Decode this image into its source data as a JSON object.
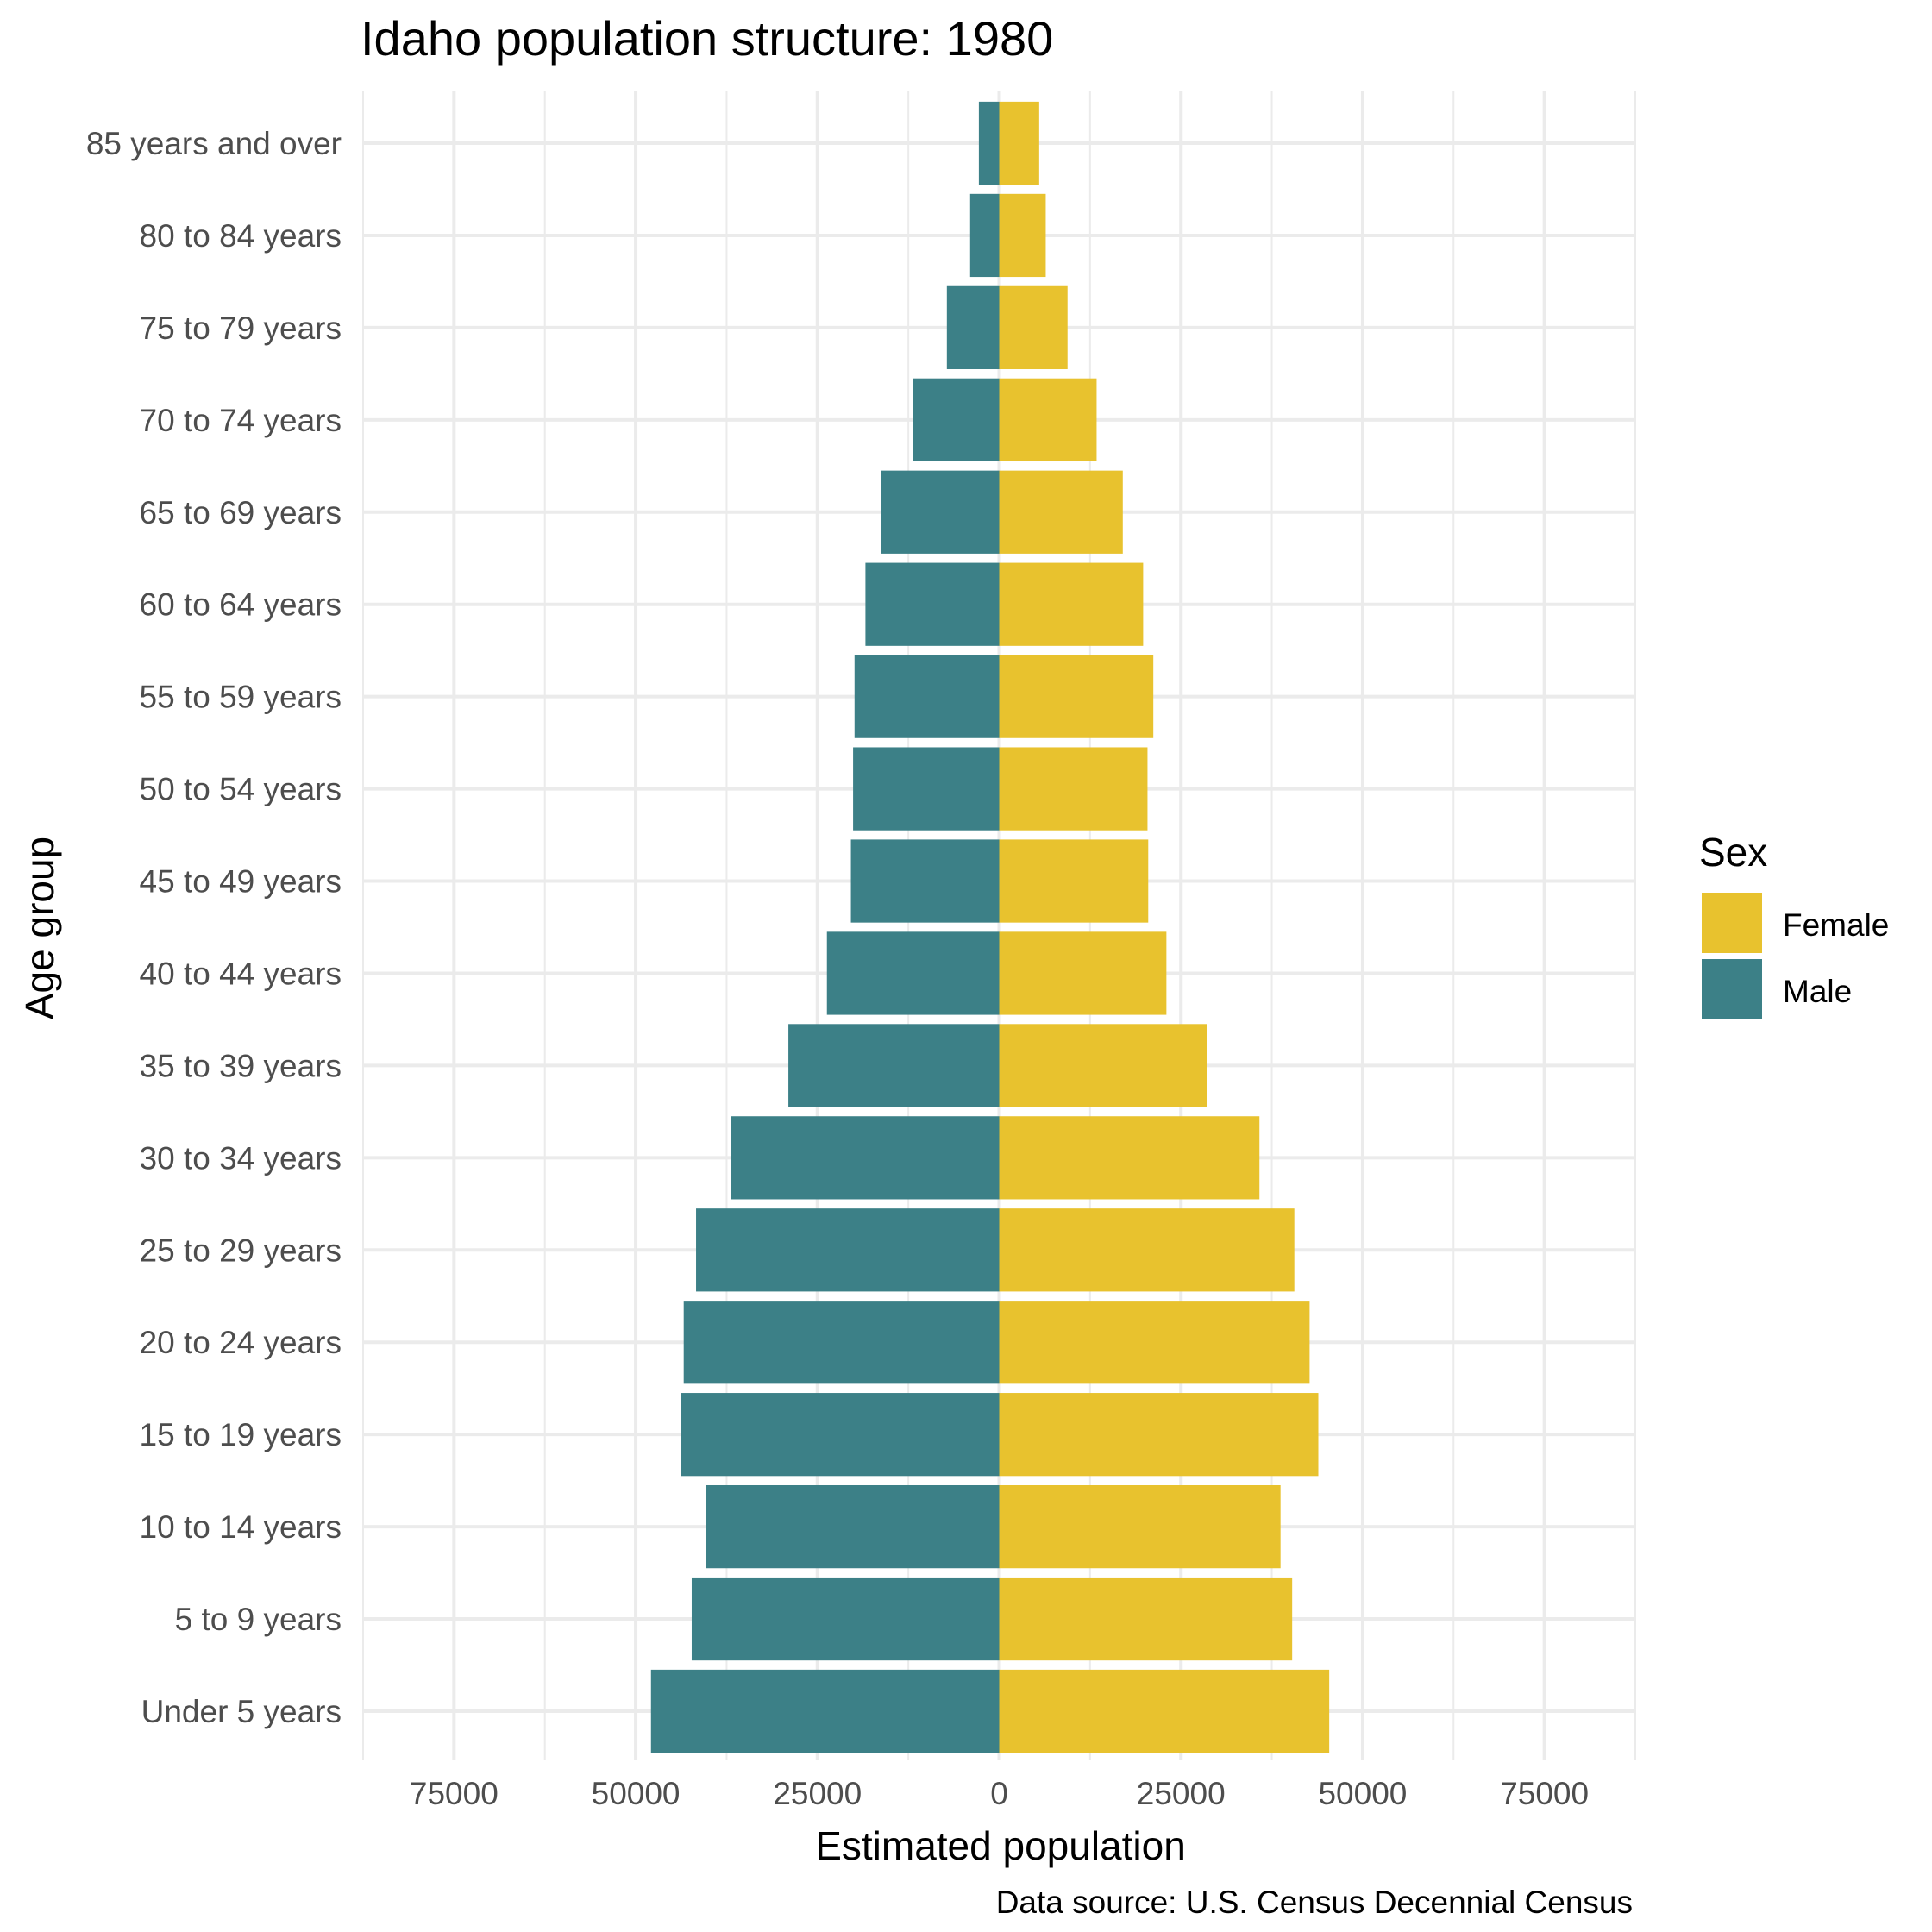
{
  "chart_data": {
    "type": "bar",
    "orientation": "horizontal-diverging",
    "title": "Idaho population structure: 1980",
    "xlabel": "Estimated population",
    "ylabel": "Age group",
    "caption": "Data source: U.S. Census Decennial Census",
    "legend_title": "Sex",
    "legend_position": "right",
    "grid": true,
    "xlim": [
      -87500,
      87500
    ],
    "x_ticks": [
      -75000,
      -50000,
      -25000,
      0,
      25000,
      50000,
      75000
    ],
    "x_tick_labels": [
      "75000",
      "50000",
      "25000",
      "0",
      "25000",
      "50000",
      "75000"
    ],
    "categories": [
      "Under 5 years",
      "5 to 9 years",
      "10 to 14 years",
      "15 to 19 years",
      "20 to 24 years",
      "25 to 29 years",
      "30 to 34 years",
      "35 to 39 years",
      "40 to 44 years",
      "45 to 49 years",
      "50 to 54 years",
      "55 to 59 years",
      "60 to 64 years",
      "65 to 69 years",
      "70 to 74 years",
      "75 to 79 years",
      "80 to 84 years",
      "85 years and over"
    ],
    "series": [
      {
        "name": "Female",
        "color": "#e8c22e",
        "values": [
          45400,
          40300,
          38700,
          43900,
          42700,
          40600,
          35800,
          28600,
          23000,
          20500,
          20400,
          21200,
          19800,
          17000,
          13400,
          9400,
          6400,
          5500
        ]
      },
      {
        "name": "Male",
        "color": "#3c8087",
        "values": [
          -47900,
          -42300,
          -40300,
          -43800,
          -43400,
          -41700,
          -36900,
          -29000,
          -23700,
          -20400,
          -20100,
          -19900,
          -18400,
          -16200,
          -11900,
          -7200,
          -4000,
          -2800
        ]
      }
    ]
  }
}
